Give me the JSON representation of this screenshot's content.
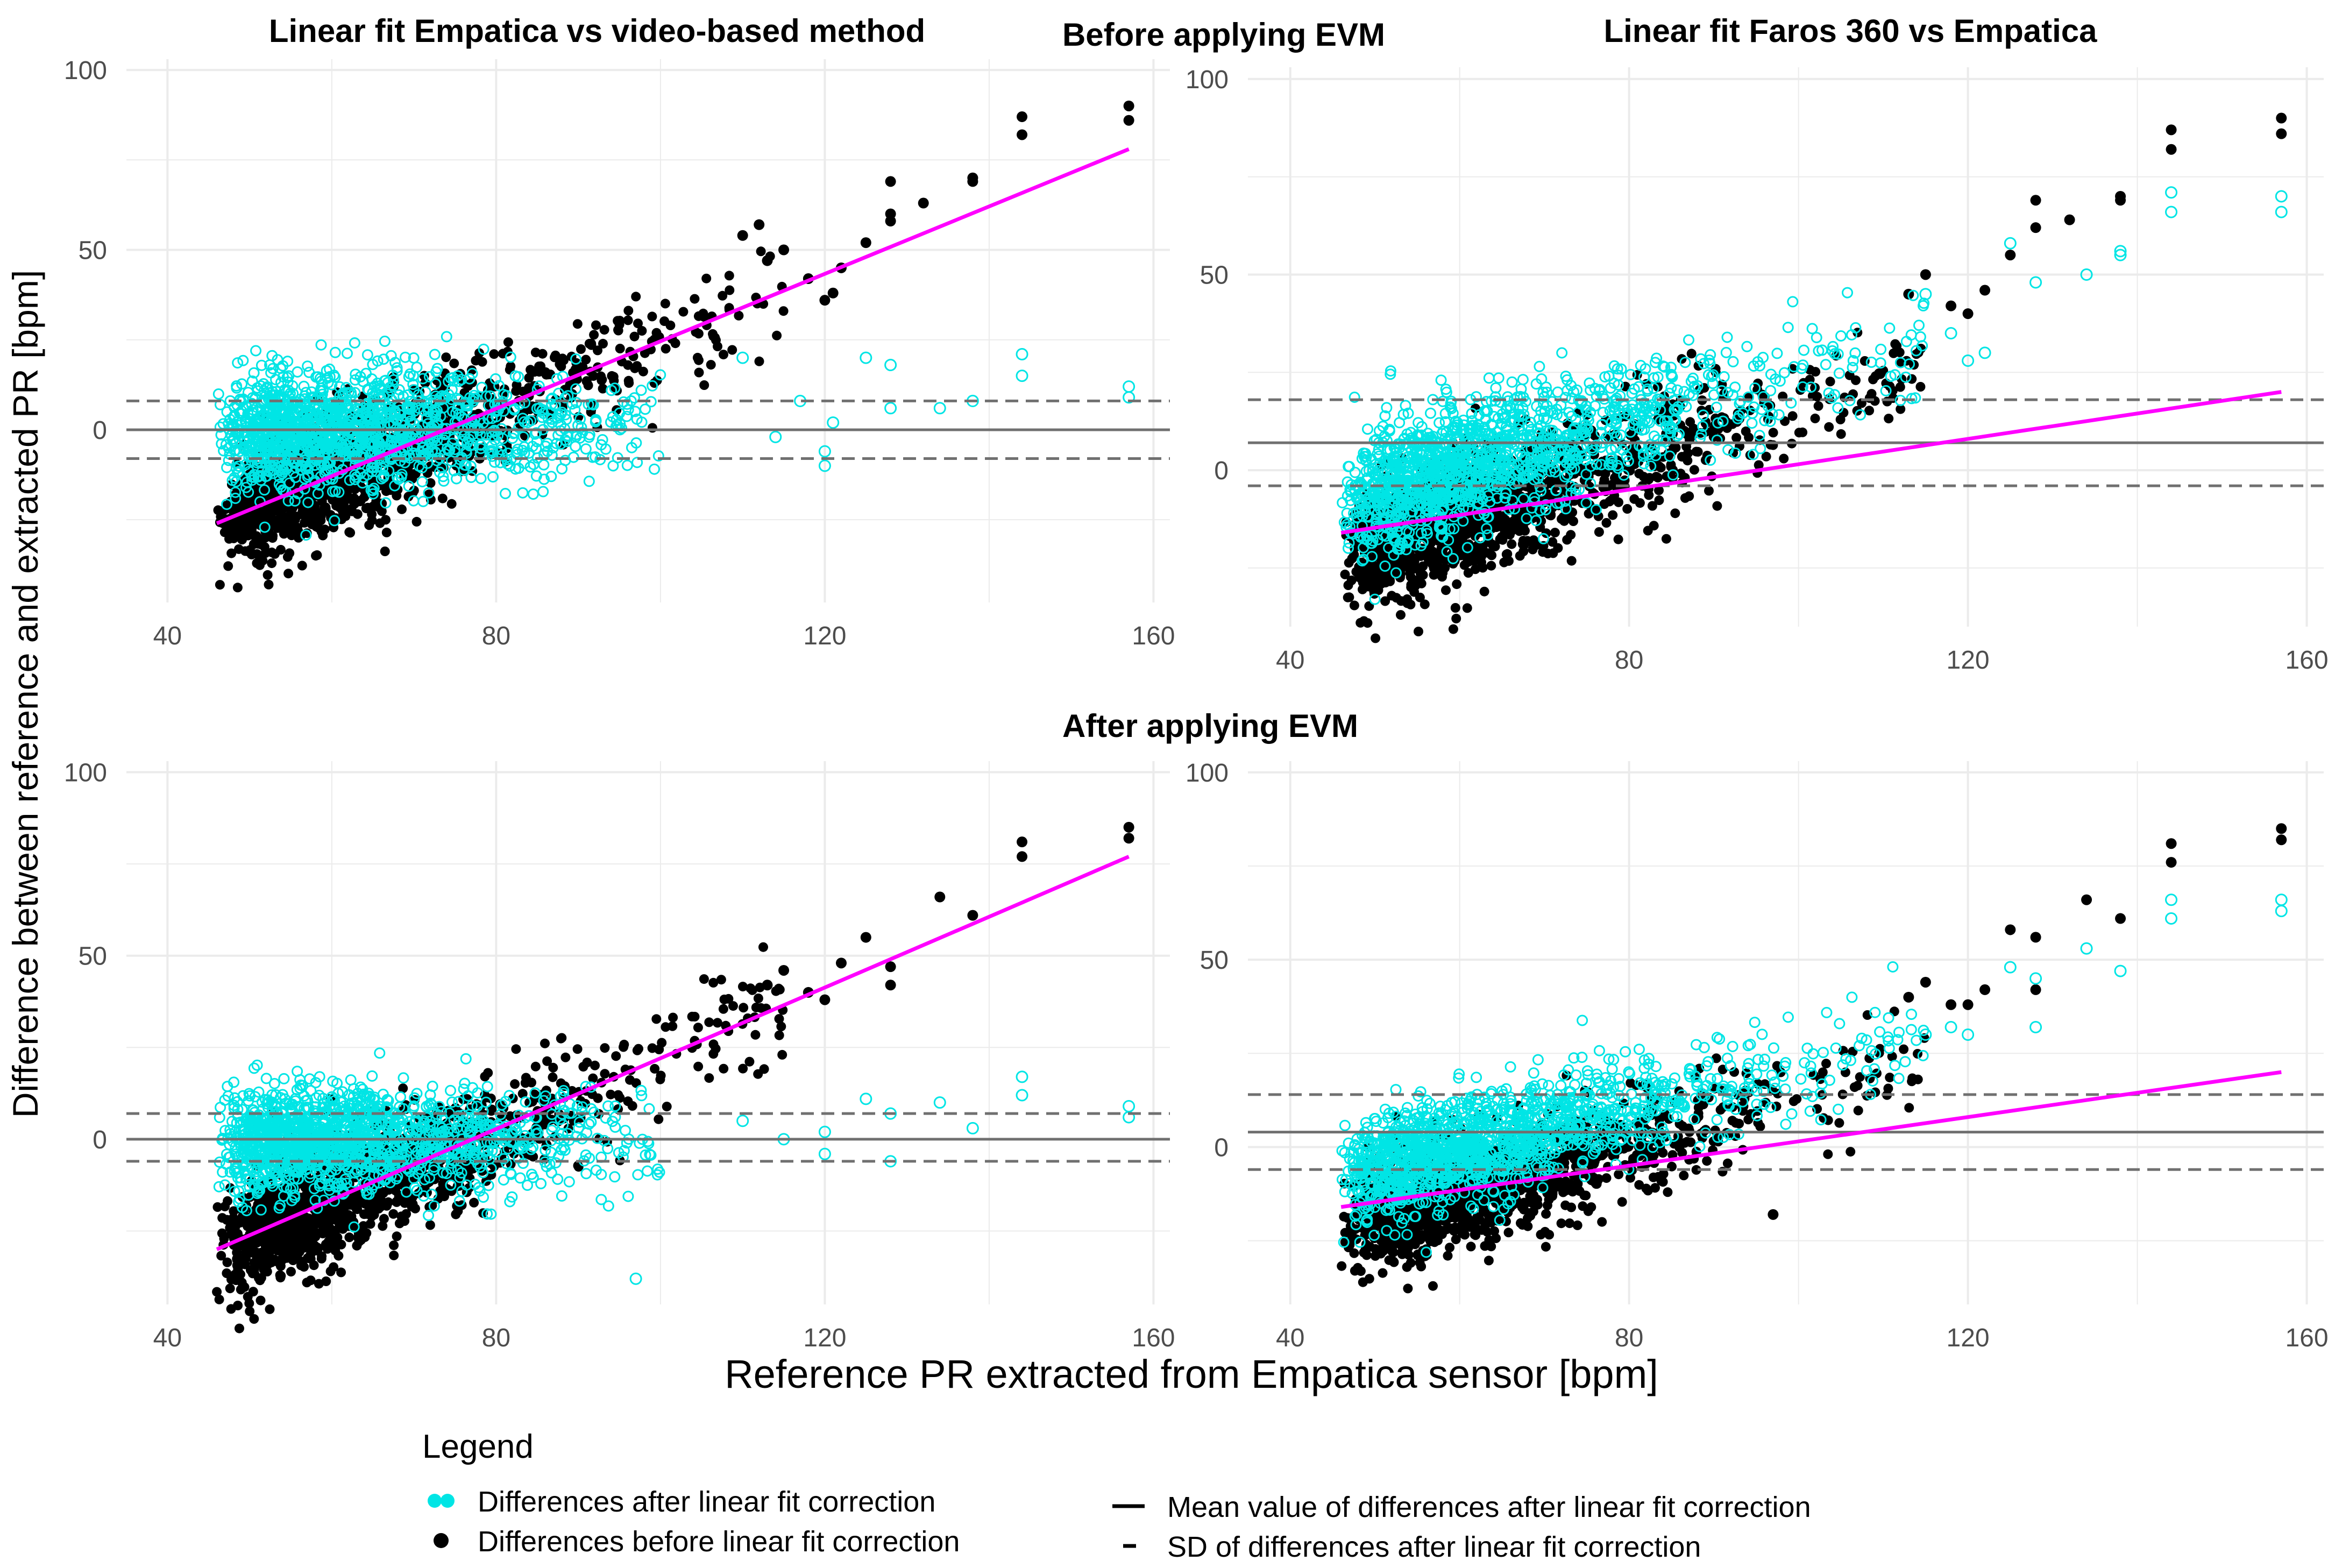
{
  "figure": {
    "section_before": "Before applying EVM",
    "section_after": "After applying EVM",
    "y_axis_label": "Difference between reference and extracted PR [bpm]",
    "x_axis_label": "Reference PR extracted from Empatica sensor [bpm]"
  },
  "legend": {
    "title": "Legend",
    "items": [
      {
        "symbol": "cyan-dot",
        "label": "Differences after linear fit correction"
      },
      {
        "symbol": "black-dot",
        "label": "Differences before linear fit correction"
      },
      {
        "symbol": "solid-line",
        "label": "Mean value of differences after linear fit correction"
      },
      {
        "symbol": "dashed-line",
        "label": "SD of differences after linear fit correction"
      }
    ]
  },
  "colors": {
    "after_correction": "#00e5e5",
    "before_correction": "#000000",
    "fit_line": "#ff00ff",
    "mean_line": "#707070",
    "sd_line": "#707070",
    "grid": "#ebebeb"
  },
  "chart_data": [
    {
      "type": "scatter",
      "title": "Linear fit Empatica vs video-based method",
      "condition": "Before applying EVM",
      "xlim": [
        35,
        162
      ],
      "ylim": [
        -48,
        103
      ],
      "x_ticks": [
        40,
        80,
        120,
        160
      ],
      "y_ticks": [
        0,
        50,
        100
      ],
      "fit_line": {
        "x": [
          46,
          157
        ],
        "y": [
          -26,
          78
        ]
      },
      "mean": 0,
      "sd_band": [
        -8,
        8
      ],
      "before_cloud": {
        "trend": [
          -26,
          78
        ],
        "spread": 8,
        "cutoff": 115
      },
      "after_cloud": {
        "trend": [
          0,
          0
        ],
        "spread": 8,
        "cutoff": 100
      },
      "before_sparse": [
        [
          113,
          47
        ],
        [
          115,
          50
        ],
        [
          118,
          42
        ],
        [
          120,
          36
        ],
        [
          121,
          38
        ],
        [
          122,
          45
        ],
        [
          125,
          52
        ],
        [
          128,
          58
        ],
        [
          128,
          60
        ],
        [
          128,
          69
        ],
        [
          132,
          63
        ],
        [
          138,
          69
        ],
        [
          138,
          70
        ],
        [
          144,
          82
        ],
        [
          144,
          87
        ],
        [
          157,
          86
        ],
        [
          157,
          90
        ],
        [
          112,
          57
        ],
        [
          110,
          54
        ]
      ],
      "after_sparse": [
        [
          110,
          20
        ],
        [
          114,
          -2
        ],
        [
          117,
          8
        ],
        [
          120,
          -6
        ],
        [
          120,
          -10
        ],
        [
          121,
          2
        ],
        [
          125,
          20
        ],
        [
          128,
          18
        ],
        [
          128,
          6
        ],
        [
          134,
          6
        ],
        [
          138,
          8
        ],
        [
          144,
          15
        ],
        [
          144,
          21
        ],
        [
          157,
          12
        ],
        [
          157,
          9
        ]
      ]
    },
    {
      "type": "scatter",
      "title": "Linear fit Faros 360 vs Empatica",
      "condition": "Before applying EVM",
      "xlim": [
        35,
        162
      ],
      "ylim": [
        -40,
        103
      ],
      "x_ticks": [
        40,
        80,
        120,
        160
      ],
      "y_ticks": [
        0,
        50,
        100
      ],
      "fit_line": {
        "x": [
          46,
          157
        ],
        "y": [
          -16,
          20
        ]
      },
      "mean": 7,
      "sd_band": [
        -4,
        18
      ],
      "before_cloud": {
        "trend": [
          -22,
          58
        ],
        "spread": 8,
        "cutoff": 115
      },
      "after_cloud": {
        "trend": [
          -8,
          58
        ],
        "spread": 8,
        "cutoff": 115
      },
      "before_sparse": [
        [
          113,
          45
        ],
        [
          115,
          50
        ],
        [
          118,
          42
        ],
        [
          120,
          40
        ],
        [
          122,
          46
        ],
        [
          125,
          55
        ],
        [
          128,
          62
        ],
        [
          128,
          69
        ],
        [
          132,
          64
        ],
        [
          138,
          69
        ],
        [
          138,
          70
        ],
        [
          144,
          82
        ],
        [
          144,
          87
        ],
        [
          157,
          86
        ],
        [
          157,
          90
        ]
      ],
      "after_sparse": [
        [
          115,
          45
        ],
        [
          118,
          35
        ],
        [
          120,
          28
        ],
        [
          122,
          30
        ],
        [
          125,
          58
        ],
        [
          128,
          48
        ],
        [
          134,
          50
        ],
        [
          138,
          55
        ],
        [
          138,
          56
        ],
        [
          144,
          66
        ],
        [
          144,
          71
        ],
        [
          157,
          66
        ],
        [
          157,
          70
        ]
      ]
    },
    {
      "type": "scatter",
      "title": "",
      "condition": "After applying EVM",
      "xlim": [
        35,
        162
      ],
      "ylim": [
        -45,
        103
      ],
      "x_ticks": [
        40,
        80,
        120,
        160
      ],
      "y_ticks": [
        0,
        50,
        100
      ],
      "fit_line": {
        "x": [
          46,
          157
        ],
        "y": [
          -30,
          77
        ]
      },
      "mean": 0,
      "sd_band": [
        -6,
        7
      ],
      "before_cloud": {
        "trend": [
          -30,
          77
        ],
        "spread": 8,
        "cutoff": 115
      },
      "after_cloud": {
        "trend": [
          0,
          0
        ],
        "spread": 7,
        "cutoff": 100
      },
      "before_sparse": [
        [
          113,
          42
        ],
        [
          115,
          46
        ],
        [
          118,
          40
        ],
        [
          120,
          38
        ],
        [
          122,
          48
        ],
        [
          125,
          55
        ],
        [
          128,
          42
        ],
        [
          128,
          47
        ],
        [
          134,
          66
        ],
        [
          138,
          61
        ],
        [
          144,
          77
        ],
        [
          144,
          81
        ],
        [
          157,
          82
        ],
        [
          157,
          85
        ]
      ],
      "after_sparse": [
        [
          97,
          -38
        ],
        [
          110,
          5
        ],
        [
          115,
          0
        ],
        [
          120,
          -4
        ],
        [
          120,
          2
        ],
        [
          125,
          11
        ],
        [
          128,
          7
        ],
        [
          128,
          -6
        ],
        [
          134,
          10
        ],
        [
          138,
          3
        ],
        [
          144,
          12
        ],
        [
          144,
          17
        ],
        [
          157,
          6
        ],
        [
          157,
          9
        ]
      ]
    },
    {
      "type": "scatter",
      "title": "",
      "condition": "After applying EVM",
      "xlim": [
        35,
        162
      ],
      "ylim": [
        -42,
        103
      ],
      "x_ticks": [
        40,
        80,
        120,
        160
      ],
      "y_ticks": [
        0,
        50,
        100
      ],
      "fit_line": {
        "x": [
          46,
          157
        ],
        "y": [
          -16,
          20
        ]
      },
      "mean": 4,
      "sd_band": [
        -6,
        14
      ],
      "before_cloud": {
        "trend": [
          -22,
          52
        ],
        "spread": 7,
        "cutoff": 115
      },
      "after_cloud": {
        "trend": [
          -8,
          52
        ],
        "spread": 7,
        "cutoff": 115
      },
      "before_sparse": [
        [
          97,
          -18
        ],
        [
          113,
          40
        ],
        [
          115,
          44
        ],
        [
          118,
          38
        ],
        [
          120,
          38
        ],
        [
          122,
          42
        ],
        [
          125,
          58
        ],
        [
          128,
          56
        ],
        [
          128,
          42
        ],
        [
          134,
          66
        ],
        [
          138,
          61
        ],
        [
          144,
          76
        ],
        [
          144,
          81
        ],
        [
          157,
          82
        ],
        [
          157,
          85
        ]
      ],
      "after_sparse": [
        [
          115,
          30
        ],
        [
          118,
          32
        ],
        [
          120,
          30
        ],
        [
          125,
          48
        ],
        [
          128,
          32
        ],
        [
          128,
          45
        ],
        [
          134,
          53
        ],
        [
          138,
          47
        ],
        [
          144,
          61
        ],
        [
          144,
          66
        ],
        [
          157,
          63
        ],
        [
          157,
          66
        ]
      ]
    }
  ]
}
